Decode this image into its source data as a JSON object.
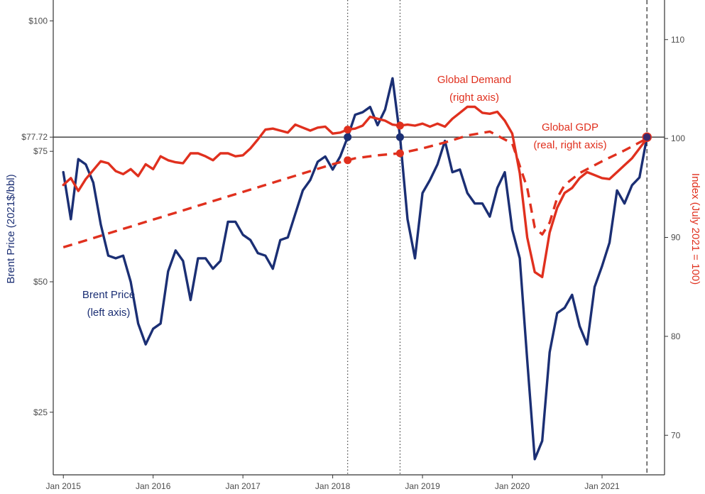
{
  "chart_data": {
    "type": "line",
    "x_axis": {
      "range": [
        "2015-01",
        "2021-08"
      ],
      "tick_labels": [
        {
          "date": "2015-01",
          "label": "Jan 2015"
        },
        {
          "date": "2016-01",
          "label": "Jan 2016"
        },
        {
          "date": "2017-01",
          "label": "Jan 2017"
        },
        {
          "date": "2018-01",
          "label": "Jan 2018"
        },
        {
          "date": "2019-01",
          "label": "Jan 2019"
        },
        {
          "date": "2020-01",
          "label": "Jan 2020"
        },
        {
          "date": "2021-01",
          "label": "Jan 2021"
        }
      ]
    },
    "y_left": {
      "label": "Brent Price (2021$/bbl)",
      "range": [
        13,
        104
      ],
      "tick_labels": [
        {
          "value": 25,
          "label": "$25"
        },
        {
          "value": 50,
          "label": "$50"
        },
        {
          "value": 75,
          "label": "$75"
        },
        {
          "value": 77.72,
          "label": "$77.72"
        },
        {
          "value": 100,
          "label": "$100"
        }
      ],
      "color": "#1b2f74"
    },
    "y_right": {
      "label": "Index (July 2021 = 100)",
      "range": [
        66,
        114
      ],
      "tick_labels": [
        {
          "value": 70,
          "label": "70"
        },
        {
          "value": 80,
          "label": "80"
        },
        {
          "value": 90,
          "label": "90"
        },
        {
          "value": 100,
          "label": "100"
        },
        {
          "value": 110,
          "label": "110"
        }
      ],
      "color": "#e0301e"
    },
    "reference_lines": {
      "horizontal_left_value": 77.72,
      "vertical_dotted_dates": [
        "2018-03",
        "2018-10"
      ],
      "vertical_dashed_date": "2021-07"
    },
    "series": [
      {
        "name": "Brent Price",
        "axis": "left",
        "style": "solid",
        "color": "#1b2f74",
        "points": [
          [
            "2015-01",
            71
          ],
          [
            "2015-02",
            62
          ],
          [
            "2015-03",
            73.5
          ],
          [
            "2015-04",
            72.5
          ],
          [
            "2015-05",
            69
          ],
          [
            "2015-06",
            61
          ],
          [
            "2015-07",
            55
          ],
          [
            "2015-08",
            54.5
          ],
          [
            "2015-09",
            55
          ],
          [
            "2015-10",
            50
          ],
          [
            "2015-11",
            42
          ],
          [
            "2015-12",
            38
          ],
          [
            "2016-01",
            41
          ],
          [
            "2016-02",
            42
          ],
          [
            "2016-03",
            52
          ],
          [
            "2016-04",
            56
          ],
          [
            "2016-05",
            54
          ],
          [
            "2016-06",
            46.5
          ],
          [
            "2016-07",
            54.5
          ],
          [
            "2016-08",
            54.5
          ],
          [
            "2016-09",
            52.5
          ],
          [
            "2016-10",
            54
          ],
          [
            "2016-11",
            61.5
          ],
          [
            "2016-12",
            61.5
          ],
          [
            "2017-01",
            59
          ],
          [
            "2017-02",
            58
          ],
          [
            "2017-03",
            55.5
          ],
          [
            "2017-04",
            55
          ],
          [
            "2017-05",
            52.5
          ],
          [
            "2017-06",
            58
          ],
          [
            "2017-07",
            58.5
          ],
          [
            "2017-08",
            63
          ],
          [
            "2017-09",
            67.5
          ],
          [
            "2017-10",
            69.5
          ],
          [
            "2017-11",
            73
          ],
          [
            "2017-12",
            74
          ],
          [
            "2018-01",
            71.5
          ],
          [
            "2018-02",
            74
          ],
          [
            "2018-03",
            77.72
          ],
          [
            "2018-04",
            82
          ],
          [
            "2018-05",
            82.5
          ],
          [
            "2018-06",
            83.5
          ],
          [
            "2018-07",
            80
          ],
          [
            "2018-08",
            83
          ],
          [
            "2018-09",
            89
          ],
          [
            "2018-10",
            77.72
          ],
          [
            "2018-11",
            62
          ],
          [
            "2018-12",
            54.5
          ],
          [
            "2019-01",
            67
          ],
          [
            "2019-02",
            69.5
          ],
          [
            "2019-03",
            72.5
          ],
          [
            "2019-04",
            77
          ],
          [
            "2019-05",
            71
          ],
          [
            "2019-06",
            71.5
          ],
          [
            "2019-07",
            67
          ],
          [
            "2019-08",
            65
          ],
          [
            "2019-09",
            65
          ],
          [
            "2019-10",
            62.5
          ],
          [
            "2019-11",
            68
          ],
          [
            "2019-12",
            71
          ],
          [
            "2020-01",
            60
          ],
          [
            "2020-02",
            54.5
          ],
          [
            "2020-03",
            35
          ],
          [
            "2020-04",
            16
          ],
          [
            "2020-05",
            19.5
          ],
          [
            "2020-06",
            36.5
          ],
          [
            "2020-07",
            44
          ],
          [
            "2020-08",
            45
          ],
          [
            "2020-09",
            47.5
          ],
          [
            "2020-10",
            41.5
          ],
          [
            "2020-11",
            38
          ],
          [
            "2020-12",
            49
          ],
          [
            "2021-01",
            53
          ],
          [
            "2021-02",
            57.5
          ],
          [
            "2021-03",
            67.5
          ],
          [
            "2021-04",
            65
          ],
          [
            "2021-05",
            68.5
          ],
          [
            "2021-06",
            70
          ],
          [
            "2021-07",
            77.72
          ]
        ]
      },
      {
        "name": "Global Demand",
        "axis": "right",
        "style": "solid",
        "color": "#e0301e",
        "points": [
          [
            "2015-01",
            95.3
          ],
          [
            "2015-02",
            96
          ],
          [
            "2015-03",
            94.7
          ],
          [
            "2015-04",
            95.9
          ],
          [
            "2015-05",
            96.8
          ],
          [
            "2015-06",
            97.7
          ],
          [
            "2015-07",
            97.5
          ],
          [
            "2015-08",
            96.7
          ],
          [
            "2015-09",
            96.4
          ],
          [
            "2015-10",
            96.9
          ],
          [
            "2015-11",
            96.2
          ],
          [
            "2015-12",
            97.4
          ],
          [
            "2016-01",
            96.9
          ],
          [
            "2016-02",
            98.2
          ],
          [
            "2016-03",
            97.8
          ],
          [
            "2016-04",
            97.6
          ],
          [
            "2016-05",
            97.5
          ],
          [
            "2016-06",
            98.5
          ],
          [
            "2016-07",
            98.5
          ],
          [
            "2016-08",
            98.2
          ],
          [
            "2016-09",
            97.8
          ],
          [
            "2016-10",
            98.5
          ],
          [
            "2016-11",
            98.5
          ],
          [
            "2016-12",
            98.2
          ],
          [
            "2017-01",
            98.3
          ],
          [
            "2017-02",
            99
          ],
          [
            "2017-03",
            99.9
          ],
          [
            "2017-04",
            100.9
          ],
          [
            "2017-05",
            101
          ],
          [
            "2017-06",
            100.8
          ],
          [
            "2017-07",
            100.6
          ],
          [
            "2017-08",
            101.4
          ],
          [
            "2017-09",
            101.1
          ],
          [
            "2017-10",
            100.8
          ],
          [
            "2017-11",
            101.1
          ],
          [
            "2017-12",
            101.2
          ],
          [
            "2018-01",
            100.5
          ],
          [
            "2018-02",
            100.6
          ],
          [
            "2018-03",
            100.9
          ],
          [
            "2018-04",
            101
          ],
          [
            "2018-05",
            101.3
          ],
          [
            "2018-06",
            102.2
          ],
          [
            "2018-07",
            102
          ],
          [
            "2018-08",
            101.8
          ],
          [
            "2018-09",
            101.4
          ],
          [
            "2018-10",
            101.3
          ],
          [
            "2018-11",
            101.4
          ],
          [
            "2018-12",
            101.3
          ],
          [
            "2019-01",
            101.5
          ],
          [
            "2019-02",
            101.2
          ],
          [
            "2019-03",
            101.5
          ],
          [
            "2019-04",
            101.2
          ],
          [
            "2019-05",
            102
          ],
          [
            "2019-06",
            102.6
          ],
          [
            "2019-07",
            103.2
          ],
          [
            "2019-08",
            103.2
          ],
          [
            "2019-09",
            102.6
          ],
          [
            "2019-10",
            102.5
          ],
          [
            "2019-11",
            102.7
          ],
          [
            "2019-12",
            101.8
          ],
          [
            "2020-01",
            100.5
          ],
          [
            "2020-02",
            96.5
          ],
          [
            "2020-03",
            90
          ],
          [
            "2020-04",
            86.5
          ],
          [
            "2020-05",
            86
          ],
          [
            "2020-06",
            90.5
          ],
          [
            "2020-07",
            93
          ],
          [
            "2020-08",
            94.5
          ],
          [
            "2020-09",
            95
          ],
          [
            "2020-10",
            96
          ],
          [
            "2020-11",
            96.6
          ],
          [
            "2020-12",
            96.3
          ],
          [
            "2021-01",
            96
          ],
          [
            "2021-02",
            95.9
          ],
          [
            "2021-03",
            96.6
          ],
          [
            "2021-04",
            97.3
          ],
          [
            "2021-05",
            98
          ],
          [
            "2021-06",
            99
          ],
          [
            "2021-07",
            100
          ]
        ]
      },
      {
        "name": "Global GDP",
        "axis": "right",
        "style": "dashed",
        "color": "#e0301e",
        "points": [
          [
            "2015-01",
            89
          ],
          [
            "2015-04",
            89.7
          ],
          [
            "2015-07",
            90.4
          ],
          [
            "2015-10",
            91.1
          ],
          [
            "2016-01",
            91.8
          ],
          [
            "2016-04",
            92.5
          ],
          [
            "2016-07",
            93.2
          ],
          [
            "2016-10",
            93.9
          ],
          [
            "2017-01",
            94.6
          ],
          [
            "2017-04",
            95.3
          ],
          [
            "2017-07",
            96
          ],
          [
            "2017-10",
            96.7
          ],
          [
            "2018-01",
            97.4
          ],
          [
            "2018-03",
            97.8
          ],
          [
            "2018-04",
            98
          ],
          [
            "2018-07",
            98.3
          ],
          [
            "2018-10",
            98.5
          ],
          [
            "2019-01",
            99
          ],
          [
            "2019-04",
            99.6
          ],
          [
            "2019-07",
            100.3
          ],
          [
            "2019-10",
            100.7
          ],
          [
            "2020-01",
            99.5
          ],
          [
            "2020-03",
            95
          ],
          [
            "2020-04",
            91
          ],
          [
            "2020-05",
            90.3
          ],
          [
            "2020-06",
            91.5
          ],
          [
            "2020-07",
            94
          ],
          [
            "2020-08",
            95.3
          ],
          [
            "2020-10",
            96.5
          ],
          [
            "2021-01",
            97.7
          ],
          [
            "2021-04",
            98.8
          ],
          [
            "2021-07",
            100
          ]
        ]
      }
    ],
    "highlight_points": [
      {
        "series": "Brent Price",
        "date": "2018-03",
        "value": 77.72
      },
      {
        "series": "Brent Price",
        "date": "2018-10",
        "value": 77.72
      },
      {
        "series": "Brent Price",
        "date": "2021-07",
        "value": 77.72
      },
      {
        "series": "Global Demand",
        "date": "2018-03",
        "value": 100.9
      },
      {
        "series": "Global Demand",
        "date": "2018-10",
        "value": 101.3
      },
      {
        "series": "Global GDP",
        "date": "2018-03",
        "value": 97.8
      },
      {
        "series": "Global GDP",
        "date": "2018-10",
        "value": 98.5
      }
    ],
    "annotations": [
      {
        "series": "Brent Price",
        "lines": [
          "Brent Price",
          "(left axis)"
        ],
        "color": "#1b2f74"
      },
      {
        "series": "Global Demand",
        "lines": [
          "Global Demand",
          "(right axis)"
        ],
        "color": "#e0301e"
      },
      {
        "series": "Global GDP",
        "lines": [
          "Global GDP",
          "(real, right axis)"
        ],
        "color": "#e0301e"
      }
    ],
    "legend": "none",
    "grid": false
  }
}
